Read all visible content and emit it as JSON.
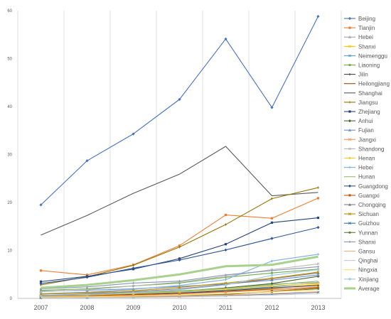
{
  "chart_data": {
    "type": "line",
    "title": "",
    "xlabel": "",
    "ylabel": "",
    "x": [
      "2007",
      "2008",
      "2009",
      "2010",
      "2011",
      "2012",
      "2013"
    ],
    "ylim": [
      0,
      60
    ],
    "yticks": [
      0,
      10,
      20,
      30,
      40,
      50,
      60
    ],
    "grid": "vertical",
    "legend": "right",
    "series": [
      {
        "name": "Beijing",
        "color": "#4472c4",
        "marker": "diamond",
        "values": [
          19.5,
          28.7,
          34.3,
          41.5,
          54.1,
          39.8,
          58.8
        ]
      },
      {
        "name": "Tianjin",
        "color": "#ed7d31",
        "marker": "square",
        "values": [
          5.8,
          4.9,
          7.0,
          11.0,
          17.4,
          16.7,
          20.9
        ]
      },
      {
        "name": "Hebei",
        "color": "#a5a5a5",
        "marker": "triangle",
        "values": [
          0.9,
          1.1,
          1.3,
          1.6,
          2.0,
          3.0,
          3.3
        ]
      },
      {
        "name": "Shanxi",
        "color": "#ffc000",
        "marker": "x",
        "values": [
          0.3,
          0.5,
          0.7,
          1.0,
          1.4,
          2.1,
          2.9
        ]
      },
      {
        "name": "Neimenggu",
        "color": "#5b9bd5",
        "marker": "x",
        "values": [
          0.5,
          0.7,
          0.9,
          1.3,
          1.8,
          2.4,
          3.2
        ]
      },
      {
        "name": "Liaoning",
        "color": "#70ad47",
        "marker": "circle",
        "values": [
          1.7,
          2.0,
          2.6,
          3.2,
          4.4,
          5.3,
          6.1
        ]
      },
      {
        "name": "Jilin",
        "color": "#404040",
        "marker": "plus",
        "values": [
          0.4,
          0.6,
          0.8,
          1.1,
          1.6,
          2.2,
          2.7
        ]
      },
      {
        "name": "Heilongjiang",
        "color": "#9e480e",
        "marker": "none",
        "values": [
          0.5,
          0.6,
          0.8,
          1.0,
          1.4,
          1.9,
          2.3
        ]
      },
      {
        "name": "Shanghai",
        "color": "#595959",
        "marker": "none",
        "values": [
          13.2,
          17.3,
          21.9,
          25.9,
          31.7,
          21.4,
          22.1
        ]
      },
      {
        "name": "Jiangsu",
        "color": "#997300",
        "marker": "plus",
        "values": [
          2.8,
          4.5,
          6.9,
          10.7,
          15.4,
          20.8,
          23.1
        ]
      },
      {
        "name": "Zhejiang",
        "color": "#264478",
        "marker": "square",
        "values": [
          3.5,
          4.6,
          6.1,
          8.3,
          11.3,
          15.8,
          16.8
        ]
      },
      {
        "name": "Anhui",
        "color": "#43682b",
        "marker": "diamond",
        "values": [
          0.6,
          0.8,
          1.1,
          1.5,
          2.2,
          3.1,
          4.6
        ]
      },
      {
        "name": "Fujian",
        "color": "#698ed0",
        "marker": "triangle",
        "values": [
          1.5,
          1.7,
          2.0,
          2.5,
          3.0,
          3.8,
          4.9
        ]
      },
      {
        "name": "Jiangxi",
        "color": "#f1975a",
        "marker": "x",
        "values": [
          0.2,
          0.4,
          0.6,
          0.9,
          1.3,
          1.8,
          2.4
        ]
      },
      {
        "name": "Shandong",
        "color": "#b7b7b7",
        "marker": "x",
        "values": [
          1.4,
          1.8,
          2.6,
          3.4,
          4.6,
          6.0,
          7.2
        ]
      },
      {
        "name": "Henan",
        "color": "#ffcd33",
        "marker": "circle",
        "values": [
          0.5,
          0.7,
          1.0,
          1.4,
          1.9,
          2.6,
          3.1
        ]
      },
      {
        "name": "Hebei",
        "color": "#7cafdd",
        "marker": "plus",
        "values": [
          1.0,
          1.3,
          1.9,
          2.7,
          3.9,
          7.8,
          9.2
        ]
      },
      {
        "name": "Hunan",
        "color": "#8cc168",
        "marker": "none",
        "values": [
          0.6,
          0.8,
          1.1,
          1.5,
          2.1,
          2.8,
          3.6
        ]
      },
      {
        "name": "Guangdong",
        "color": "#2f5597",
        "marker": "diamond",
        "values": [
          3.1,
          4.4,
          6.3,
          8.0,
          10.1,
          12.5,
          14.8
        ]
      },
      {
        "name": "Guangxi",
        "color": "#c55a11",
        "marker": "square",
        "values": [
          0.3,
          0.3,
          0.4,
          0.6,
          0.8,
          1.5,
          2.2
        ]
      },
      {
        "name": "Chongqing",
        "color": "#7f7f7f",
        "marker": "triangle",
        "values": [
          0.6,
          0.9,
          1.4,
          2.0,
          2.9,
          4.1,
          5.3
        ]
      },
      {
        "name": "Sichuan",
        "color": "#bf8f00",
        "marker": "x",
        "values": [
          0.9,
          1.2,
          1.6,
          2.3,
          3.2,
          4.2,
          5.5
        ]
      },
      {
        "name": "Guizhou",
        "color": "#2e75b6",
        "marker": "x",
        "values": [
          0.1,
          0.2,
          0.3,
          0.4,
          0.6,
          0.9,
          1.3
        ]
      },
      {
        "name": "Yunnan",
        "color": "#548235",
        "marker": "circle",
        "values": [
          0.2,
          0.3,
          0.4,
          0.6,
          0.9,
          1.4,
          2.0
        ]
      },
      {
        "name": "Shanxi",
        "color": "#8497b0",
        "marker": "plus",
        "values": [
          2.0,
          2.4,
          3.2,
          3.6,
          4.9,
          5.8,
          6.6
        ]
      },
      {
        "name": "Gansu",
        "color": "#f4b183",
        "marker": "none",
        "values": [
          0.2,
          0.3,
          0.4,
          0.5,
          0.7,
          1.0,
          1.4
        ]
      },
      {
        "name": "Qinghai",
        "color": "#c9c9c9",
        "marker": "none",
        "values": [
          0.1,
          0.2,
          0.2,
          0.3,
          0.5,
          0.7,
          1.0
        ]
      },
      {
        "name": "Ningxia",
        "color": "#ffd966",
        "marker": "none",
        "values": [
          0.3,
          0.4,
          0.5,
          0.7,
          1.0,
          1.4,
          1.8
        ]
      },
      {
        "name": "Xinjiang",
        "color": "#9dc3e6",
        "marker": "diamond",
        "values": [
          0.5,
          0.8,
          1.2,
          1.8,
          2.8,
          4.8,
          6.0
        ]
      },
      {
        "name": "Average",
        "color": "#a9d18e",
        "marker": "none",
        "thick": true,
        "values": [
          2.2,
          2.8,
          3.8,
          5.0,
          6.7,
          7.0,
          8.7
        ]
      }
    ]
  }
}
